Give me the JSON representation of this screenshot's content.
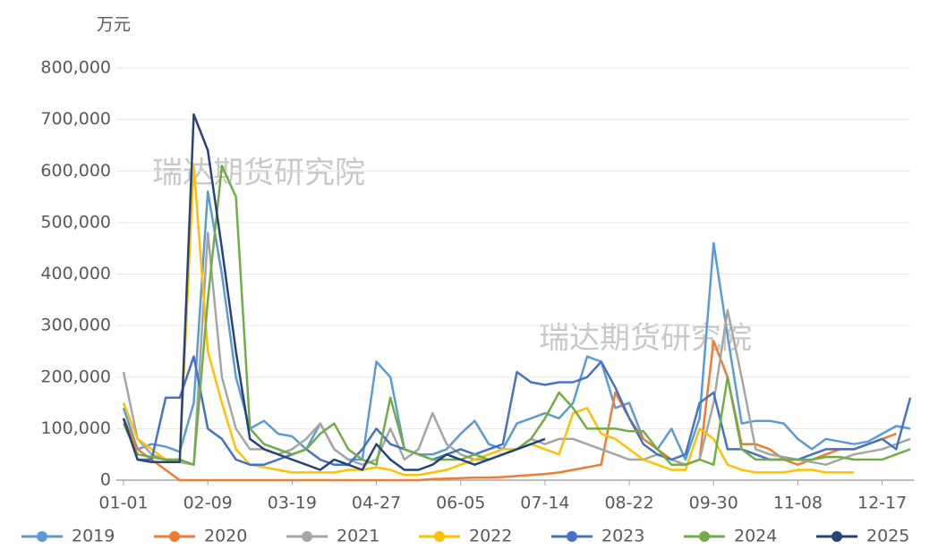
{
  "chart_data": {
    "type": "line",
    "y_label": "万元",
    "annotations": [
      "瑞达期货研究院",
      "瑞达期货研究院"
    ],
    "categories": [
      "01-01",
      null,
      null,
      null,
      null,
      null,
      "02-09",
      null,
      null,
      null,
      null,
      null,
      "03-19",
      null,
      null,
      null,
      null,
      null,
      "04-27",
      null,
      null,
      null,
      null,
      null,
      "06-05",
      null,
      null,
      null,
      null,
      null,
      "07-14",
      null,
      null,
      null,
      null,
      null,
      "08-22",
      null,
      null,
      null,
      null,
      null,
      "09-30",
      null,
      null,
      null,
      null,
      null,
      "11-08",
      null,
      null,
      null,
      null,
      null,
      "12-17",
      null,
      null
    ],
    "ylim": [
      0,
      800000
    ],
    "yticks": [
      0,
      {
        "value": 100000,
        "label": "100,000"
      },
      {
        "value": 200000,
        "label": "200,000"
      },
      {
        "value": 300000,
        "label": "300,000"
      },
      {
        "value": 400000,
        "label": "400,000"
      },
      {
        "value": 500000,
        "label": "500,000"
      },
      {
        "value": 600000,
        "label": "600,000"
      },
      {
        "value": 700000,
        "label": "700,000"
      },
      {
        "value": 800000,
        "label": "800,000"
      }
    ],
    "grid": true,
    "legend": "bottom",
    "series": [
      {
        "name": "2019",
        "color": "#5b9bd5",
        "values": [
          140000,
          60000,
          70000,
          65000,
          55000,
          150000,
          560000,
          400000,
          200000,
          100000,
          115000,
          90000,
          85000,
          60000,
          110000,
          60000,
          40000,
          40000,
          230000,
          200000,
          60000,
          50000,
          50000,
          60000,
          90000,
          115000,
          70000,
          60000,
          110000,
          120000,
          130000,
          120000,
          150000,
          240000,
          230000,
          140000,
          150000,
          80000,
          60000,
          100000,
          40000,
          120000,
          460000,
          280000,
          110000,
          115000,
          115000,
          110000,
          80000,
          60000,
          80000,
          75000,
          70000,
          75000,
          90000,
          105000,
          100000
        ]
      },
      {
        "name": "2020",
        "color": "#ed7d31",
        "values": [
          120000,
          60000,
          40000,
          20000,
          0,
          0,
          0,
          0,
          0,
          0,
          0,
          0,
          0,
          0,
          0,
          0,
          0,
          0,
          0,
          0,
          0,
          0,
          2000,
          3000,
          4000,
          5000,
          5000,
          6000,
          8000,
          10000,
          12000,
          15000,
          20000,
          25000,
          30000,
          170000,
          120000,
          80000,
          60000,
          40000,
          30000,
          40000,
          270000,
          200000,
          70000,
          70000,
          60000,
          40000,
          30000,
          40000,
          50000,
          60000,
          60000,
          70000,
          80000,
          90000,
          null
        ]
      },
      {
        "name": "2021",
        "color": "#a5a5a5",
        "values": [
          210000,
          80000,
          50000,
          40000,
          35000,
          30000,
          480000,
          200000,
          100000,
          60000,
          60000,
          50000,
          60000,
          80000,
          110000,
          60000,
          40000,
          30000,
          40000,
          100000,
          40000,
          60000,
          130000,
          70000,
          50000,
          40000,
          40000,
          50000,
          60000,
          80000,
          70000,
          80000,
          80000,
          70000,
          60000,
          50000,
          40000,
          40000,
          50000,
          40000,
          30000,
          40000,
          150000,
          330000,
          200000,
          60000,
          50000,
          45000,
          40000,
          35000,
          30000,
          40000,
          50000,
          55000,
          60000,
          70000,
          80000
        ]
      },
      {
        "name": "2022",
        "color": "#ffc000",
        "values": [
          150000,
          80000,
          60000,
          40000,
          40000,
          610000,
          250000,
          150000,
          60000,
          30000,
          25000,
          20000,
          15000,
          15000,
          15000,
          15000,
          20000,
          20000,
          25000,
          20000,
          10000,
          10000,
          15000,
          20000,
          30000,
          40000,
          50000,
          60000,
          60000,
          70000,
          60000,
          50000,
          130000,
          140000,
          90000,
          80000,
          60000,
          40000,
          30000,
          20000,
          20000,
          100000,
          80000,
          30000,
          20000,
          15000,
          15000,
          15000,
          20000,
          20000,
          15000,
          15000,
          15000,
          null,
          null,
          null,
          null
        ]
      },
      {
        "name": "2023",
        "color": "#4472c4",
        "values": [
          120000,
          40000,
          40000,
          160000,
          160000,
          240000,
          100000,
          80000,
          40000,
          30000,
          30000,
          40000,
          50000,
          60000,
          40000,
          30000,
          30000,
          60000,
          100000,
          70000,
          60000,
          50000,
          40000,
          50000,
          60000,
          50000,
          60000,
          70000,
          210000,
          190000,
          185000,
          190000,
          190000,
          200000,
          230000,
          180000,
          120000,
          70000,
          50000,
          40000,
          50000,
          150000,
          170000,
          60000,
          60000,
          50000,
          40000,
          40000,
          40000,
          50000,
          60000,
          60000,
          60000,
          70000,
          80000,
          60000,
          160000
        ]
      },
      {
        "name": "2024",
        "color": "#70ad47",
        "values": [
          110000,
          50000,
          45000,
          40000,
          40000,
          30000,
          350000,
          610000,
          550000,
          100000,
          70000,
          60000,
          50000,
          60000,
          90000,
          110000,
          60000,
          40000,
          30000,
          160000,
          60000,
          50000,
          40000,
          40000,
          40000,
          50000,
          40000,
          50000,
          60000,
          80000,
          120000,
          170000,
          140000,
          100000,
          100000,
          100000,
          95000,
          95000,
          60000,
          30000,
          30000,
          40000,
          30000,
          200000,
          60000,
          40000,
          40000,
          40000,
          40000,
          40000,
          45000,
          45000,
          40000,
          40000,
          40000,
          50000,
          60000
        ]
      },
      {
        "name": "2025",
        "color": "#264478",
        "values": [
          120000,
          40000,
          35000,
          35000,
          35000,
          710000,
          640000,
          450000,
          250000,
          80000,
          60000,
          50000,
          40000,
          30000,
          20000,
          40000,
          30000,
          20000,
          70000,
          40000,
          20000,
          20000,
          30000,
          50000,
          40000,
          30000,
          40000,
          50000,
          60000,
          70000,
          80000,
          null,
          null,
          null,
          null,
          null,
          null,
          null,
          null,
          null,
          null,
          null,
          null,
          null,
          null,
          null,
          null,
          null,
          null,
          null,
          null,
          null,
          null,
          null,
          null,
          null,
          null
        ]
      }
    ]
  }
}
